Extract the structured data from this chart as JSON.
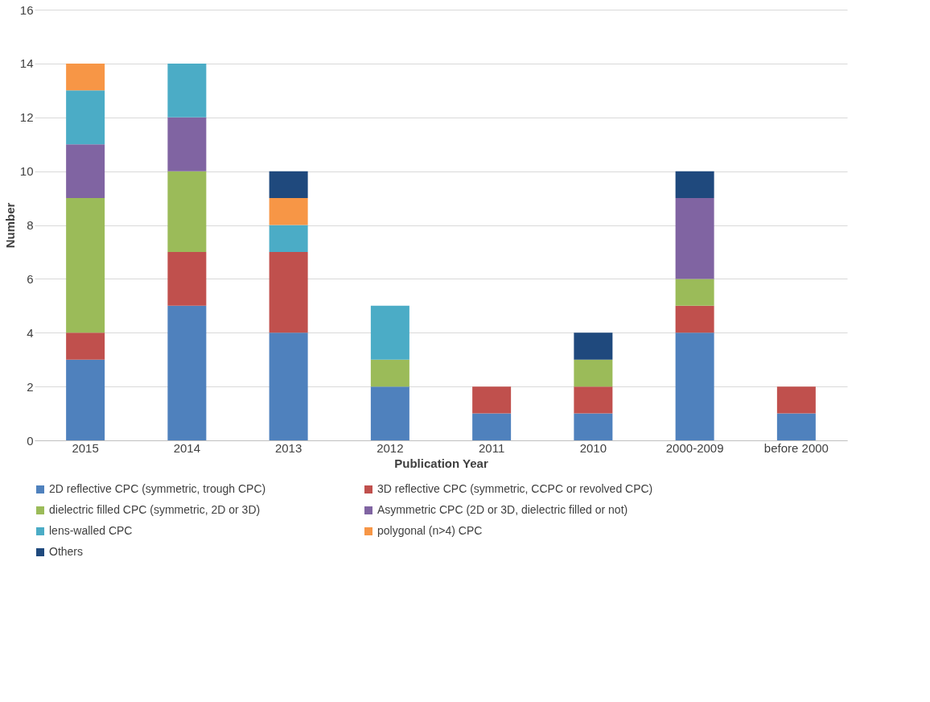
{
  "chart_data": {
    "type": "bar",
    "stacked": true,
    "xlabel": "Publication Year",
    "ylabel": "Number",
    "categories": [
      "2015",
      "2014",
      "2013",
      "2012",
      "2011",
      "2010",
      "2000-2009",
      "before 2000"
    ],
    "series": [
      {
        "name": "2D reflective CPC (symmetric, trough CPC)",
        "color": "#4f81bd",
        "values": [
          3,
          5,
          4,
          2,
          1,
          1,
          4,
          1
        ]
      },
      {
        "name": "3D reflective CPC (symmetric, CCPC or revolved CPC)",
        "color": "#c0504d",
        "values": [
          1,
          2,
          3,
          0,
          1,
          1,
          1,
          1
        ]
      },
      {
        "name": "dielectric filled CPC (symmetric, 2D or 3D)",
        "color": "#9bbb59",
        "values": [
          5,
          3,
          0,
          1,
          0,
          1,
          1,
          0
        ]
      },
      {
        "name": "Asymmetric CPC (2D or 3D, dielectric filled or not)",
        "color": "#8064a2",
        "values": [
          2,
          2,
          0,
          0,
          0,
          0,
          3,
          0
        ]
      },
      {
        "name": "lens-walled CPC",
        "color": "#4bacc6",
        "values": [
          2,
          2,
          1,
          2,
          0,
          0,
          0,
          0
        ]
      },
      {
        "name": "polygonal (n>4) CPC",
        "color": "#f79646",
        "values": [
          1,
          0,
          1,
          0,
          0,
          0,
          0,
          0
        ]
      },
      {
        "name": "Others",
        "color": "#1f497d",
        "values": [
          0,
          0,
          1,
          0,
          0,
          1,
          1,
          0
        ]
      }
    ],
    "ylim": [
      0,
      16
    ],
    "yticks": [
      0,
      2,
      4,
      6,
      8,
      10,
      12,
      14,
      16
    ],
    "grid": "y",
    "legend": "bottom"
  }
}
